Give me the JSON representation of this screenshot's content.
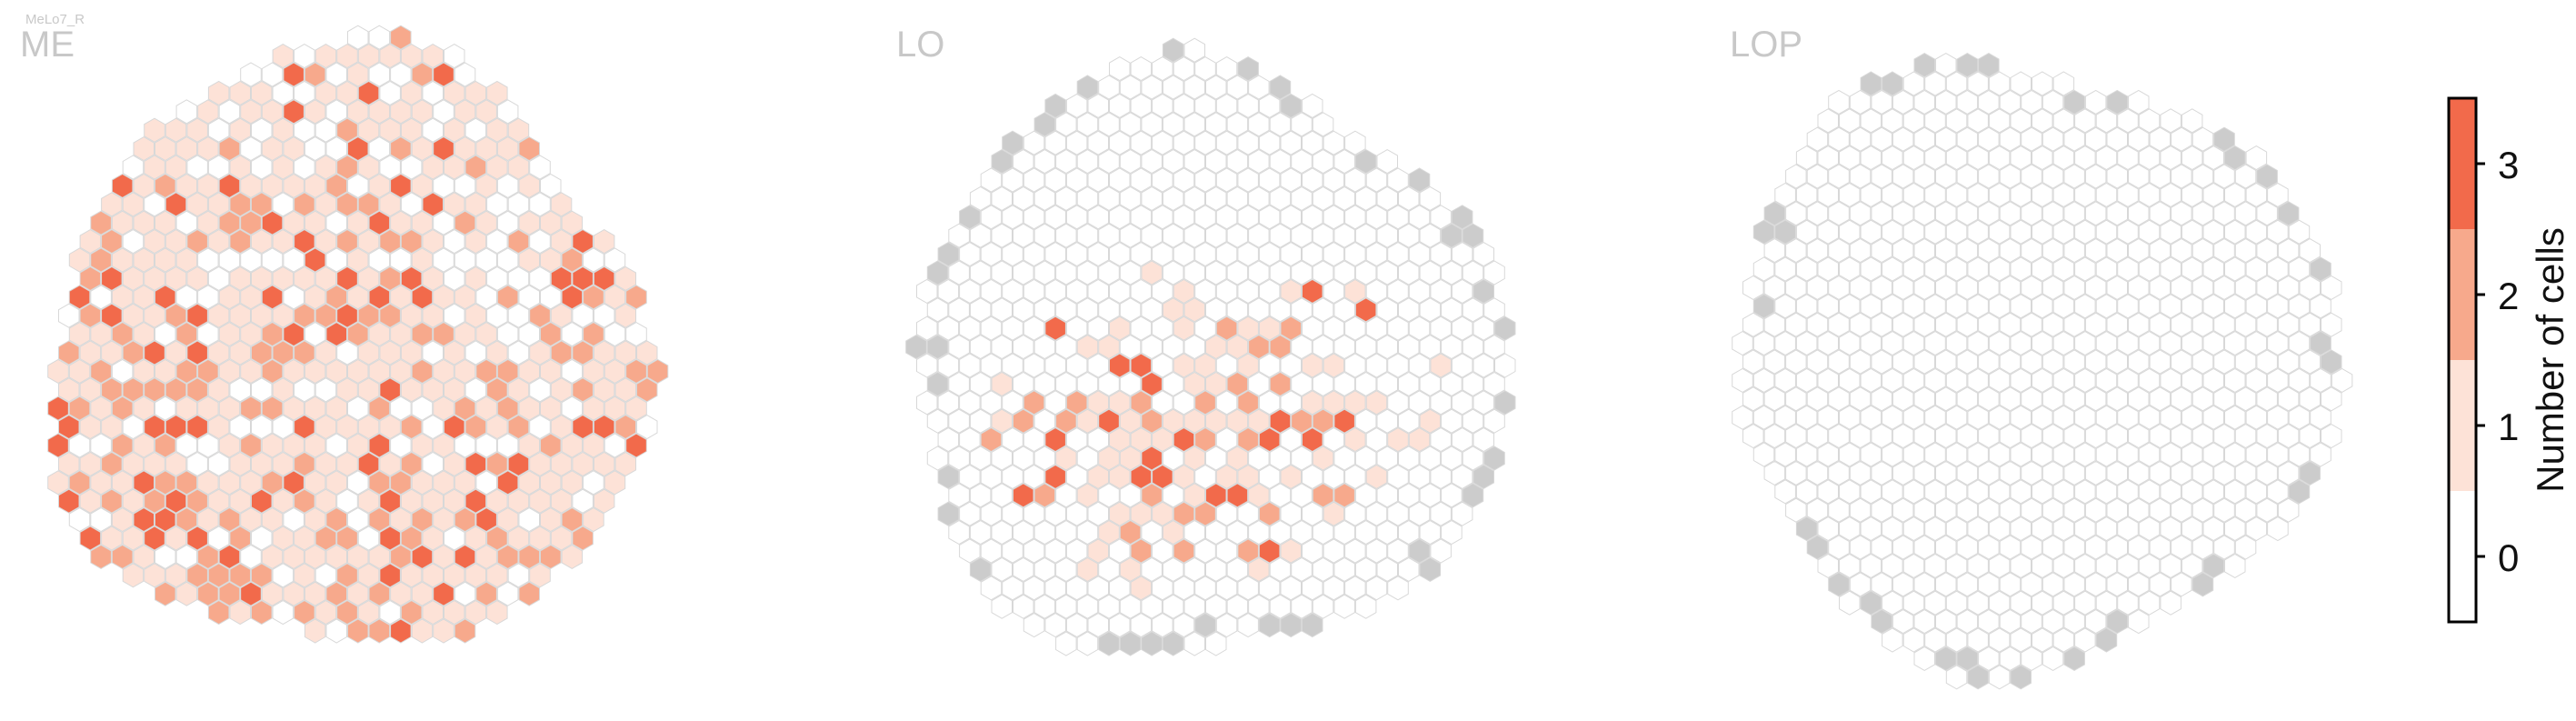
{
  "figure": {
    "supertitle": "MeLo7_R"
  },
  "colors": {
    "empty_fill": "#ffffff",
    "hex_stroke": "#d8d8d8",
    "outside_fill": "#cccccc",
    "level_1": "#fde2d7",
    "level_2": "#f7a98c",
    "level_3": "#f26a4b"
  },
  "chart_data": [
    {
      "type": "heatmap",
      "title": "ME",
      "grid": "hexagonal eye map",
      "summary": "Most columns contain 1 cell; counts of 2-3 concentrated in lower-left and center; upper-right mostly 0",
      "seed": 11,
      "distribution": {
        "p0": 0.22,
        "p1": 0.5,
        "p2": 0.2,
        "p3": 0.08,
        "bias": "lower-left"
      }
    },
    {
      "type": "heatmap",
      "title": "LO",
      "grid": "hexagonal eye map",
      "summary": "Counts 1-3 concentrated in the center-lower region; outer rim mostly 0; grey hexes along the edge",
      "seed": 23,
      "distribution": {
        "p0": 0.6,
        "p1": 0.25,
        "p2": 0.1,
        "p3": 0.05,
        "bias": "center-lower"
      }
    },
    {
      "type": "heatmap",
      "title": "LOP",
      "grid": "hexagonal eye map",
      "summary": "All columns 0; grey hexes along the edge",
      "seed": 37,
      "distribution": {
        "p0": 1.0,
        "p1": 0,
        "p2": 0,
        "p3": 0,
        "bias": "none"
      }
    }
  ],
  "colorbar": {
    "label": "Number of cells",
    "ticks": [
      "0",
      "1",
      "2",
      "3"
    ],
    "range": [
      -0.5,
      3.5
    ],
    "colors": [
      "#ffffff",
      "#fde2d7",
      "#f7a98c",
      "#f26a4b"
    ]
  }
}
